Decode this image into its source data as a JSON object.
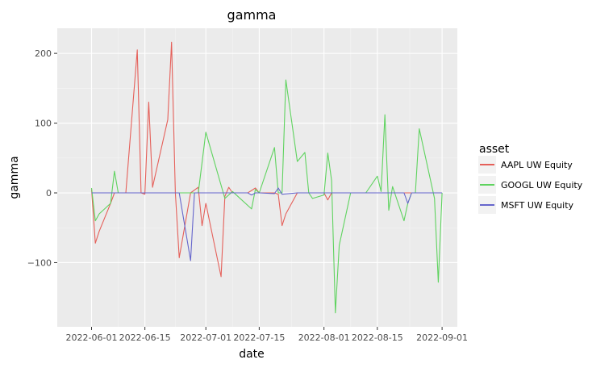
{
  "chart_data": {
    "type": "line",
    "title": "gamma",
    "xlabel": "date",
    "ylabel": "gamma",
    "xlim": [
      "2022-05-23",
      "2022-09-05"
    ],
    "ylim": [
      -192,
      236
    ],
    "xticks": [
      "2022-06-01",
      "2022-06-15",
      "2022-07-01",
      "2022-07-15",
      "2022-08-01",
      "2022-08-15",
      "2022-09-01"
    ],
    "yticks": [
      -100,
      0,
      100,
      200
    ],
    "ytick_labels": [
      "−100",
      "0",
      "100",
      "200"
    ],
    "grid": true,
    "legend": {
      "title": "asset",
      "position": "right"
    },
    "series": [
      {
        "name": "AAPL UW Equity",
        "color": "#e5605a",
        "points": [
          [
            "2022-06-01",
            5
          ],
          [
            "2022-06-02",
            -72
          ],
          [
            "2022-06-03",
            -55
          ],
          [
            "2022-06-06",
            -15
          ],
          [
            "2022-06-07",
            0
          ],
          [
            "2022-06-08",
            0
          ],
          [
            "2022-06-10",
            0
          ],
          [
            "2022-06-13",
            205
          ],
          [
            "2022-06-14",
            0
          ],
          [
            "2022-06-15",
            -2
          ],
          [
            "2022-06-16",
            130
          ],
          [
            "2022-06-17",
            8
          ],
          [
            "2022-06-21",
            105
          ],
          [
            "2022-06-22",
            216
          ],
          [
            "2022-06-23",
            0
          ],
          [
            "2022-06-24",
            -93
          ],
          [
            "2022-06-27",
            0
          ],
          [
            "2022-06-29",
            8
          ],
          [
            "2022-06-30",
            -47
          ],
          [
            "2022-07-01",
            -15
          ],
          [
            "2022-07-05",
            -120
          ],
          [
            "2022-07-06",
            -5
          ],
          [
            "2022-07-07",
            8
          ],
          [
            "2022-07-08",
            0
          ],
          [
            "2022-07-11",
            0
          ],
          [
            "2022-07-12",
            0
          ],
          [
            "2022-07-14",
            7
          ],
          [
            "2022-07-15",
            0
          ],
          [
            "2022-07-18",
            0
          ],
          [
            "2022-07-19",
            0
          ],
          [
            "2022-07-20",
            -2
          ],
          [
            "2022-07-21",
            -47
          ],
          [
            "2022-07-22",
            -30
          ],
          [
            "2022-07-25",
            0
          ],
          [
            "2022-07-28",
            0
          ],
          [
            "2022-08-01",
            0
          ],
          [
            "2022-08-02",
            -10
          ],
          [
            "2022-08-03",
            0
          ],
          [
            "2022-08-10",
            0
          ],
          [
            "2022-08-15",
            0
          ],
          [
            "2022-08-24",
            0
          ],
          [
            "2022-09-01",
            0
          ]
        ]
      },
      {
        "name": "GOOGL UW Equity",
        "color": "#5fd35f",
        "points": [
          [
            "2022-06-01",
            7
          ],
          [
            "2022-06-02",
            -40
          ],
          [
            "2022-06-03",
            -30
          ],
          [
            "2022-06-06",
            -15
          ],
          [
            "2022-06-07",
            31
          ],
          [
            "2022-06-08",
            0
          ],
          [
            "2022-06-13",
            0
          ],
          [
            "2022-06-20",
            0
          ],
          [
            "2022-06-24",
            0
          ],
          [
            "2022-06-29",
            0
          ],
          [
            "2022-07-01",
            87
          ],
          [
            "2022-07-06",
            -8
          ],
          [
            "2022-07-08",
            2
          ],
          [
            "2022-07-13",
            -23
          ],
          [
            "2022-07-14",
            5
          ],
          [
            "2022-07-15",
            0
          ],
          [
            "2022-07-19",
            65
          ],
          [
            "2022-07-20",
            0
          ],
          [
            "2022-07-21",
            0
          ],
          [
            "2022-07-22",
            162
          ],
          [
            "2022-07-25",
            45
          ],
          [
            "2022-07-27",
            58
          ],
          [
            "2022-07-28",
            0
          ],
          [
            "2022-07-29",
            -8
          ],
          [
            "2022-08-01",
            -3
          ],
          [
            "2022-08-02",
            57
          ],
          [
            "2022-08-03",
            18
          ],
          [
            "2022-08-04",
            -172
          ],
          [
            "2022-08-05",
            -75
          ],
          [
            "2022-08-08",
            0
          ],
          [
            "2022-08-12",
            0
          ],
          [
            "2022-08-15",
            24
          ],
          [
            "2022-08-16",
            2
          ],
          [
            "2022-08-17",
            112
          ],
          [
            "2022-08-18",
            -25
          ],
          [
            "2022-08-19",
            9
          ],
          [
            "2022-08-22",
            -40
          ],
          [
            "2022-08-23",
            -15
          ],
          [
            "2022-08-24",
            0
          ],
          [
            "2022-08-25",
            0
          ],
          [
            "2022-08-26",
            92
          ],
          [
            "2022-08-30",
            -8
          ],
          [
            "2022-08-31",
            -128
          ],
          [
            "2022-09-01",
            0
          ]
        ]
      },
      {
        "name": "MSFT UW Equity",
        "color": "#6666cc",
        "points": [
          [
            "2022-06-01",
            0
          ],
          [
            "2022-06-10",
            0
          ],
          [
            "2022-06-20",
            0
          ],
          [
            "2022-06-24",
            0
          ],
          [
            "2022-06-27",
            -97
          ],
          [
            "2022-06-28",
            0
          ],
          [
            "2022-07-05",
            0
          ],
          [
            "2022-07-12",
            0
          ],
          [
            "2022-07-13",
            -3
          ],
          [
            "2022-07-14",
            0
          ],
          [
            "2022-07-15",
            0
          ],
          [
            "2022-07-19",
            -1
          ],
          [
            "2022-07-20",
            7
          ],
          [
            "2022-07-21",
            -2
          ],
          [
            "2022-07-25",
            0
          ],
          [
            "2022-08-01",
            0
          ],
          [
            "2022-08-15",
            0
          ],
          [
            "2022-08-22",
            0
          ],
          [
            "2022-08-23",
            -15
          ],
          [
            "2022-08-24",
            0
          ],
          [
            "2022-09-01",
            0
          ]
        ]
      }
    ]
  }
}
